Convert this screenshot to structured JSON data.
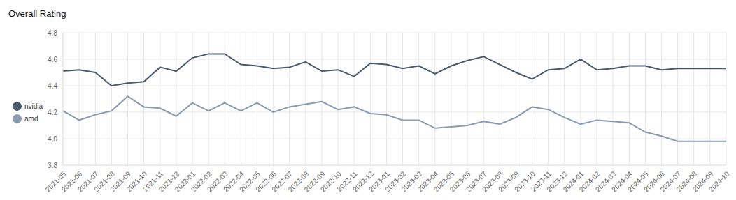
{
  "chart_data": {
    "type": "line",
    "title": "Overall Rating",
    "categories": [
      "2021-05",
      "2021-06",
      "2021-07",
      "2021-08",
      "2021-09",
      "2021-10",
      "2021-11",
      "2021-12",
      "2022-01",
      "2022-02",
      "2022-03",
      "2022-04",
      "2022-05",
      "2022-06",
      "2022-07",
      "2022-08",
      "2022-09",
      "2022-10",
      "2022-11",
      "2022-12",
      "2023-01",
      "2023-02",
      "2023-03",
      "2023-04",
      "2023-05",
      "2023-06",
      "2023-07",
      "2023-08",
      "2023-09",
      "2023-10",
      "2023-11",
      "2023-12",
      "2024-01",
      "2024-02",
      "2024-03",
      "2024-04",
      "2024-05",
      "2024-06",
      "2024-07",
      "2024-08",
      "2024-09",
      "2024-10"
    ],
    "series": [
      {
        "name": "nvidia",
        "color": "#4a5a6e",
        "values": [
          4.51,
          4.52,
          4.5,
          4.4,
          4.42,
          4.43,
          4.54,
          4.51,
          4.61,
          4.64,
          4.64,
          4.56,
          4.55,
          4.53,
          4.54,
          4.58,
          4.51,
          4.52,
          4.47,
          4.57,
          4.56,
          4.53,
          4.55,
          4.49,
          4.55,
          4.59,
          4.62,
          4.56,
          4.5,
          4.45,
          4.52,
          4.53,
          4.6,
          4.52,
          4.53,
          4.55,
          4.55,
          4.52,
          4.53,
          4.53,
          4.53,
          4.53
        ]
      },
      {
        "name": "amd",
        "color": "#8a9ab0",
        "values": [
          4.21,
          4.14,
          4.18,
          4.21,
          4.32,
          4.24,
          4.23,
          4.17,
          4.27,
          4.21,
          4.27,
          4.21,
          4.27,
          4.2,
          4.24,
          4.26,
          4.28,
          4.22,
          4.24,
          4.19,
          4.18,
          4.14,
          4.14,
          4.08,
          4.09,
          4.1,
          4.13,
          4.11,
          4.16,
          4.24,
          4.22,
          4.16,
          4.11,
          4.14,
          4.13,
          4.12,
          4.05,
          4.02,
          3.98,
          3.98,
          3.98,
          3.98
        ]
      }
    ],
    "ylim": [
      3.8,
      4.8
    ],
    "yticks": [
      3.8,
      {
        "value": 4,
        "label": "4.0"
      },
      4.2,
      4.4,
      4.6,
      4.8
    ],
    "grid": true,
    "legend": "left"
  }
}
